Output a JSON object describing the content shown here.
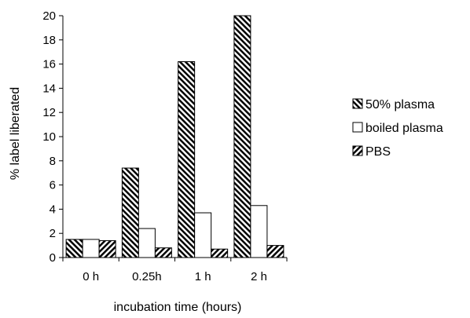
{
  "chart_data": {
    "type": "bar",
    "title": "",
    "xlabel": "incubation time (hours)",
    "ylabel": "% label liberated",
    "categories": [
      "0 h",
      "0.25h",
      "1 h",
      "2 h"
    ],
    "ylim": [
      0,
      20
    ],
    "yticks": [
      0,
      2,
      4,
      6,
      8,
      10,
      12,
      14,
      16,
      18,
      20
    ],
    "grid": false,
    "legend": "right",
    "series": [
      {
        "name": "50% plasma",
        "pattern": "hatch-back",
        "values": [
          1.5,
          7.4,
          16.2,
          20.0
        ]
      },
      {
        "name": "boiled plasma",
        "pattern": "none",
        "values": [
          1.5,
          2.4,
          3.7,
          4.3
        ]
      },
      {
        "name": "PBS",
        "pattern": "hatch-forward",
        "values": [
          1.4,
          0.8,
          0.7,
          1.0
        ]
      }
    ]
  }
}
